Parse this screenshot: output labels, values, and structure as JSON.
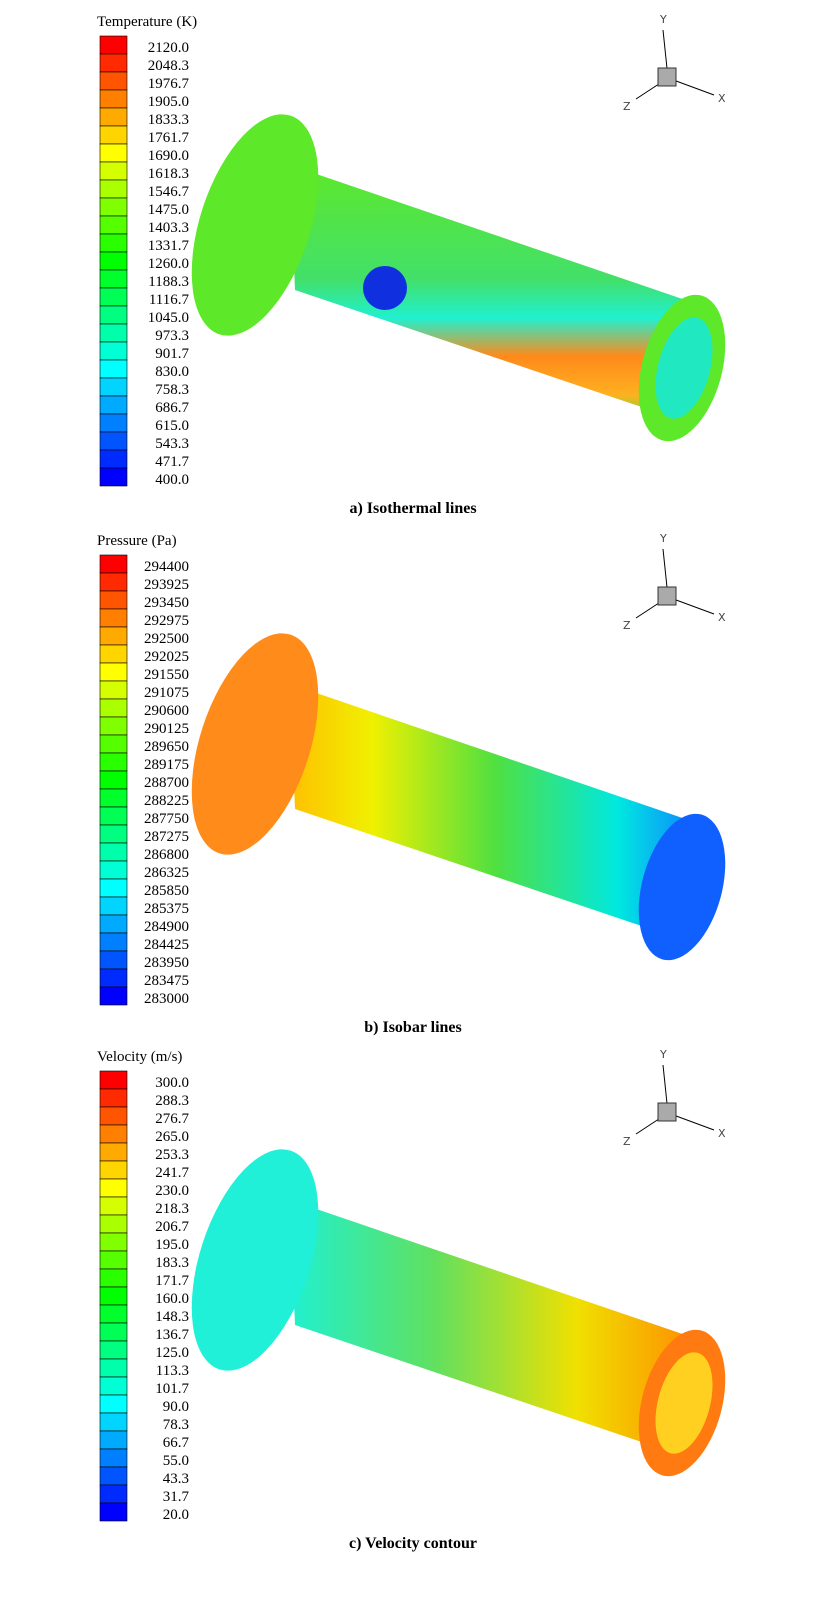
{
  "panels": [
    {
      "legend_title": "Temperature (K)",
      "legend_labels": [
        "2120.0",
        "2048.3",
        "1976.7",
        "1905.0",
        "1833.3",
        "1761.7",
        "1690.0",
        "1618.3",
        "1546.7",
        "1475.0",
        "1403.3",
        "1331.7",
        "1260.0",
        "1188.3",
        "1116.7",
        "1045.0",
        "973.3",
        "901.7",
        "830.0",
        "758.3",
        "686.7",
        "615.0",
        "543.3",
        "471.7",
        "400.0"
      ],
      "caption": "a) Isothermal lines"
    },
    {
      "legend_title": "Pressure (Pa)",
      "legend_labels": [
        "294400",
        "293925",
        "293450",
        "292975",
        "292500",
        "292025",
        "291550",
        "291075",
        "290600",
        "290125",
        "289650",
        "289175",
        "288700",
        "288225",
        "287750",
        "287275",
        "286800",
        "286325",
        "285850",
        "285375",
        "284900",
        "284425",
        "283950",
        "283475",
        "283000"
      ],
      "caption": "b) Isobar lines"
    },
    {
      "legend_title": "Velocity (m/s)",
      "legend_labels": [
        "300.0",
        "288.3",
        "276.7",
        "265.0",
        "253.3",
        "241.7",
        "230.0",
        "218.3",
        "206.7",
        "195.0",
        "183.3",
        "171.7",
        "160.0",
        "148.3",
        "136.7",
        "125.0",
        "113.3",
        "101.7",
        "90.0",
        "78.3",
        "66.7",
        "55.0",
        "43.3",
        "31.7",
        "20.0"
      ],
      "caption": "c) Velocity contour"
    }
  ],
  "axes": {
    "x": "X",
    "y": "Y",
    "z": "Z"
  }
}
